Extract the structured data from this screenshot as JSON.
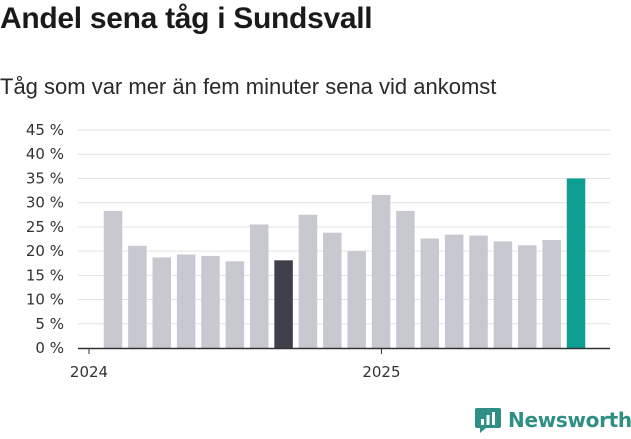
{
  "chart_data": {
    "type": "bar",
    "title": "Andel sena tåg i Sundsvall",
    "subtitle": "Tåg som var mer än fem minuter sena vid ankomst",
    "y_ticks": [
      "0 %",
      "5 %",
      "10 %",
      "15 %",
      "20 %",
      "25 %",
      "30 %",
      "35 %",
      "40 %",
      "45 %"
    ],
    "ylim": [
      0,
      45
    ],
    "x_labels": [
      {
        "label": "2024",
        "index": 0
      },
      {
        "label": "2025",
        "index": 12
      }
    ],
    "values": [
      28.3,
      21.1,
      18.7,
      19.3,
      19.0,
      17.9,
      25.5,
      18.1,
      27.5,
      23.8,
      20.0,
      31.6,
      28.3,
      22.6,
      23.4,
      23.2,
      22.0,
      21.2,
      22.3,
      35.0
    ],
    "highlights": {
      "7": "#403f4c",
      "19": "#0f9e92"
    },
    "colors": {
      "default_bar": "#c8c8d0",
      "grid": "#e3e3e3",
      "axis": "#333333"
    },
    "grid": true
  },
  "brand": {
    "name": "Newsworthy",
    "icon": "newsworthy-logo-icon",
    "color": "#2f8f84"
  }
}
